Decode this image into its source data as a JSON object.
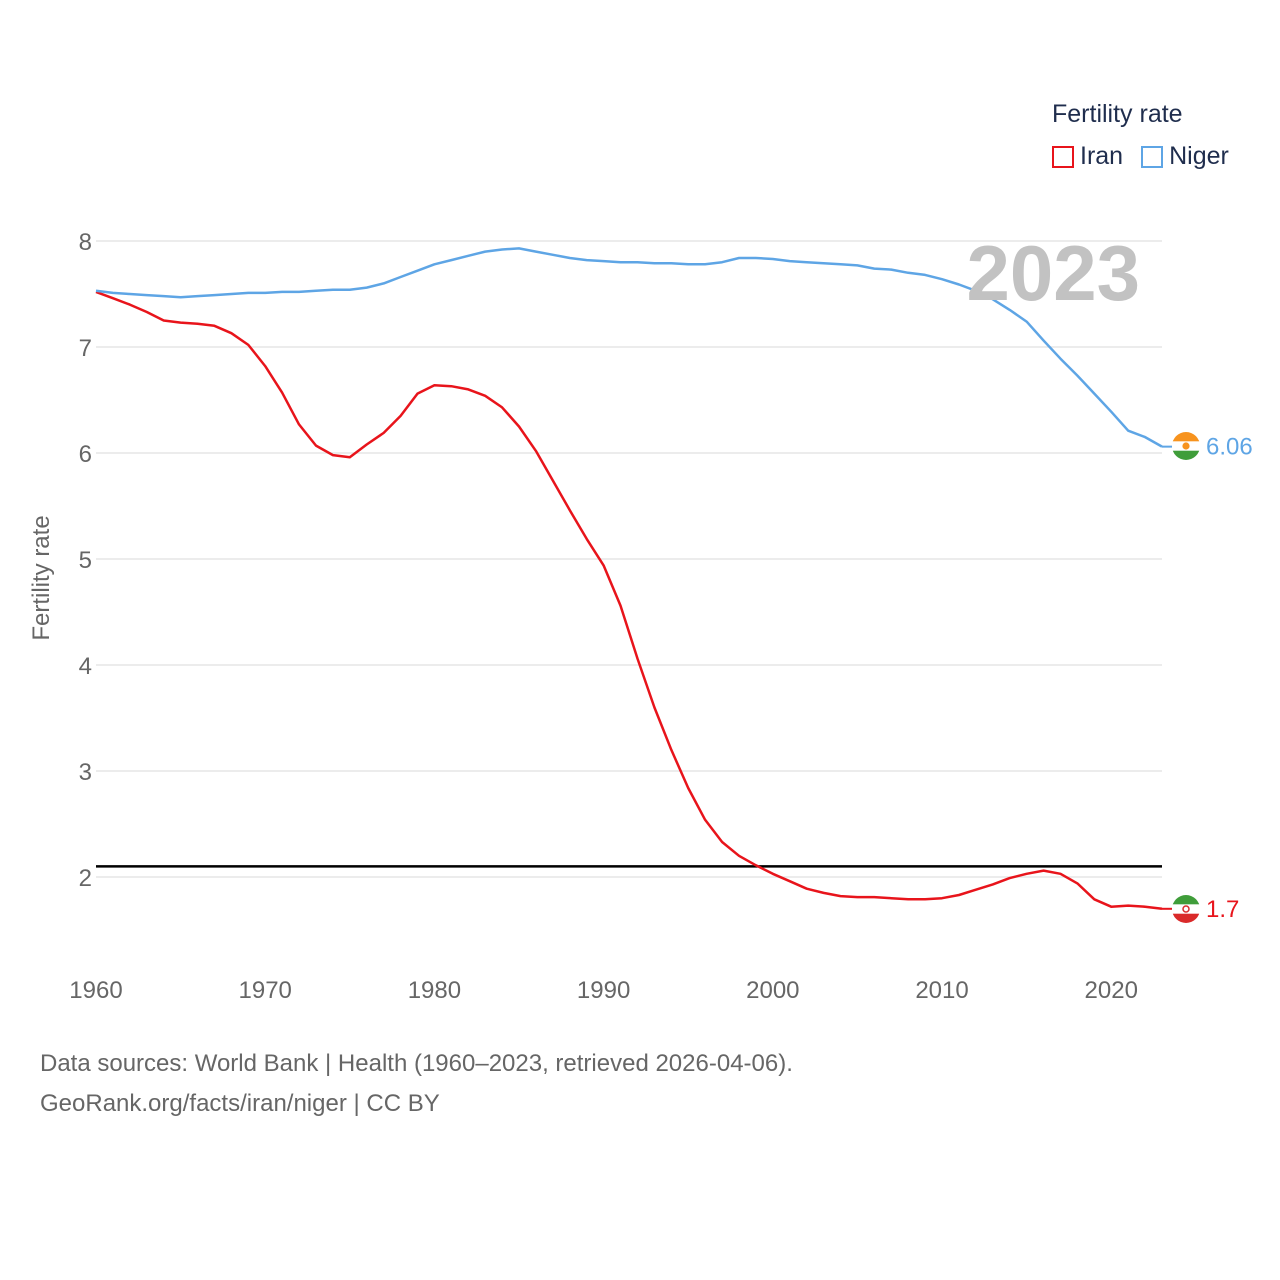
{
  "chart_data": {
    "type": "line",
    "title": "",
    "ylabel": "Fertility rate",
    "xlabel": "",
    "xlim": [
      1960,
      2023
    ],
    "ylim": [
      1.2,
      8.2
    ],
    "x_ticks": [
      1960,
      1970,
      1980,
      1990,
      2000,
      2010,
      2020
    ],
    "y_ticks": [
      2,
      3,
      4,
      5,
      6,
      7,
      8
    ],
    "grid": true,
    "reference_line": 2.1,
    "year_watermark": "2023",
    "legend": {
      "title": "Fertility rate",
      "position": "top-right",
      "entries": [
        "Iran",
        "Niger"
      ]
    },
    "x": [
      1960,
      1961,
      1962,
      1963,
      1964,
      1965,
      1966,
      1967,
      1968,
      1969,
      1970,
      1971,
      1972,
      1973,
      1974,
      1975,
      1976,
      1977,
      1978,
      1979,
      1980,
      1981,
      1982,
      1983,
      1984,
      1985,
      1986,
      1987,
      1988,
      1989,
      1990,
      1991,
      1992,
      1993,
      1994,
      1995,
      1996,
      1997,
      1998,
      1999,
      2000,
      2001,
      2002,
      2003,
      2004,
      2005,
      2006,
      2007,
      2008,
      2009,
      2010,
      2011,
      2012,
      2013,
      2014,
      2015,
      2016,
      2017,
      2018,
      2019,
      2020,
      2021,
      2022,
      2023
    ],
    "series": [
      {
        "name": "Iran",
        "color": "#e8141b",
        "end_label": "1.7",
        "values": [
          7.52,
          7.46,
          7.4,
          7.33,
          7.25,
          7.23,
          7.22,
          7.2,
          7.13,
          7.02,
          6.82,
          6.57,
          6.27,
          6.07,
          5.98,
          5.96,
          6.08,
          6.19,
          6.35,
          6.56,
          6.64,
          6.63,
          6.6,
          6.54,
          6.43,
          6.25,
          6.02,
          5.74,
          5.46,
          5.19,
          4.94,
          4.56,
          4.06,
          3.6,
          3.2,
          2.84,
          2.54,
          2.33,
          2.2,
          2.11,
          2.03,
          1.96,
          1.89,
          1.85,
          1.82,
          1.81,
          1.81,
          1.8,
          1.79,
          1.79,
          1.8,
          1.83,
          1.88,
          1.93,
          1.99,
          2.03,
          2.06,
          2.03,
          1.94,
          1.79,
          1.72,
          1.73,
          1.72,
          1.7
        ]
      },
      {
        "name": "Niger",
        "color": "#5ea5e5",
        "end_label": "6.06",
        "values": [
          7.53,
          7.51,
          7.5,
          7.49,
          7.48,
          7.47,
          7.48,
          7.49,
          7.5,
          7.51,
          7.51,
          7.52,
          7.52,
          7.53,
          7.54,
          7.54,
          7.56,
          7.6,
          7.66,
          7.72,
          7.78,
          7.82,
          7.86,
          7.9,
          7.92,
          7.93,
          7.9,
          7.87,
          7.84,
          7.82,
          7.81,
          7.8,
          7.8,
          7.79,
          7.79,
          7.78,
          7.78,
          7.8,
          7.84,
          7.84,
          7.83,
          7.81,
          7.8,
          7.79,
          7.78,
          7.77,
          7.74,
          7.73,
          7.7,
          7.68,
          7.64,
          7.59,
          7.53,
          7.45,
          7.35,
          7.24,
          7.06,
          6.89,
          6.73,
          6.56,
          6.39,
          6.21,
          6.15,
          6.06
        ]
      }
    ]
  },
  "footer": {
    "line1": "Data sources: World Bank | Health (1960–2023, retrieved 2026-04-06).",
    "line2": "GeoRank.org/facts/iran/niger | CC BY"
  }
}
